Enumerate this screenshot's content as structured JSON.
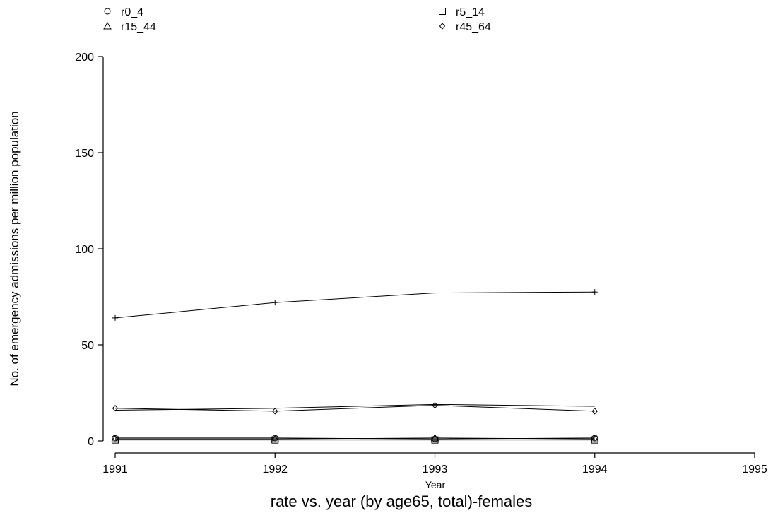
{
  "chart_data": {
    "type": "line",
    "title": "rate vs. year (by age65, total)-females",
    "xlabel": "Year",
    "ylabel": "No. of emergency admissions per million population",
    "x": [
      1991,
      1992,
      1993,
      1994
    ],
    "xlim": [
      1991,
      1995
    ],
    "ylim": [
      0,
      200
    ],
    "xticks": [
      1991,
      1992,
      1993,
      1994,
      1995
    ],
    "yticks": [
      0,
      50,
      100,
      150,
      200
    ],
    "grid": false,
    "legend_position": "top",
    "series": [
      {
        "name": "r0_4",
        "marker": "circle",
        "values": [
          1.5,
          1.5,
          1.0,
          1.5
        ]
      },
      {
        "name": "r5_14",
        "marker": "square",
        "values": [
          0.5,
          0.5,
          0.5,
          0.5
        ]
      },
      {
        "name": "r15_44",
        "marker": "triangle",
        "values": [
          1.0,
          1.0,
          1.5,
          1.0
        ]
      },
      {
        "name": "r45_64",
        "marker": "diamond",
        "values": [
          17.0,
          15.5,
          18.5,
          15.5
        ]
      },
      {
        "name": "",
        "marker": "none",
        "values": [
          16.0,
          17.0,
          19.0,
          18.0
        ]
      },
      {
        "name": "",
        "marker": "plus",
        "values": [
          64.0,
          72.0,
          77.0,
          77.5
        ]
      }
    ]
  }
}
